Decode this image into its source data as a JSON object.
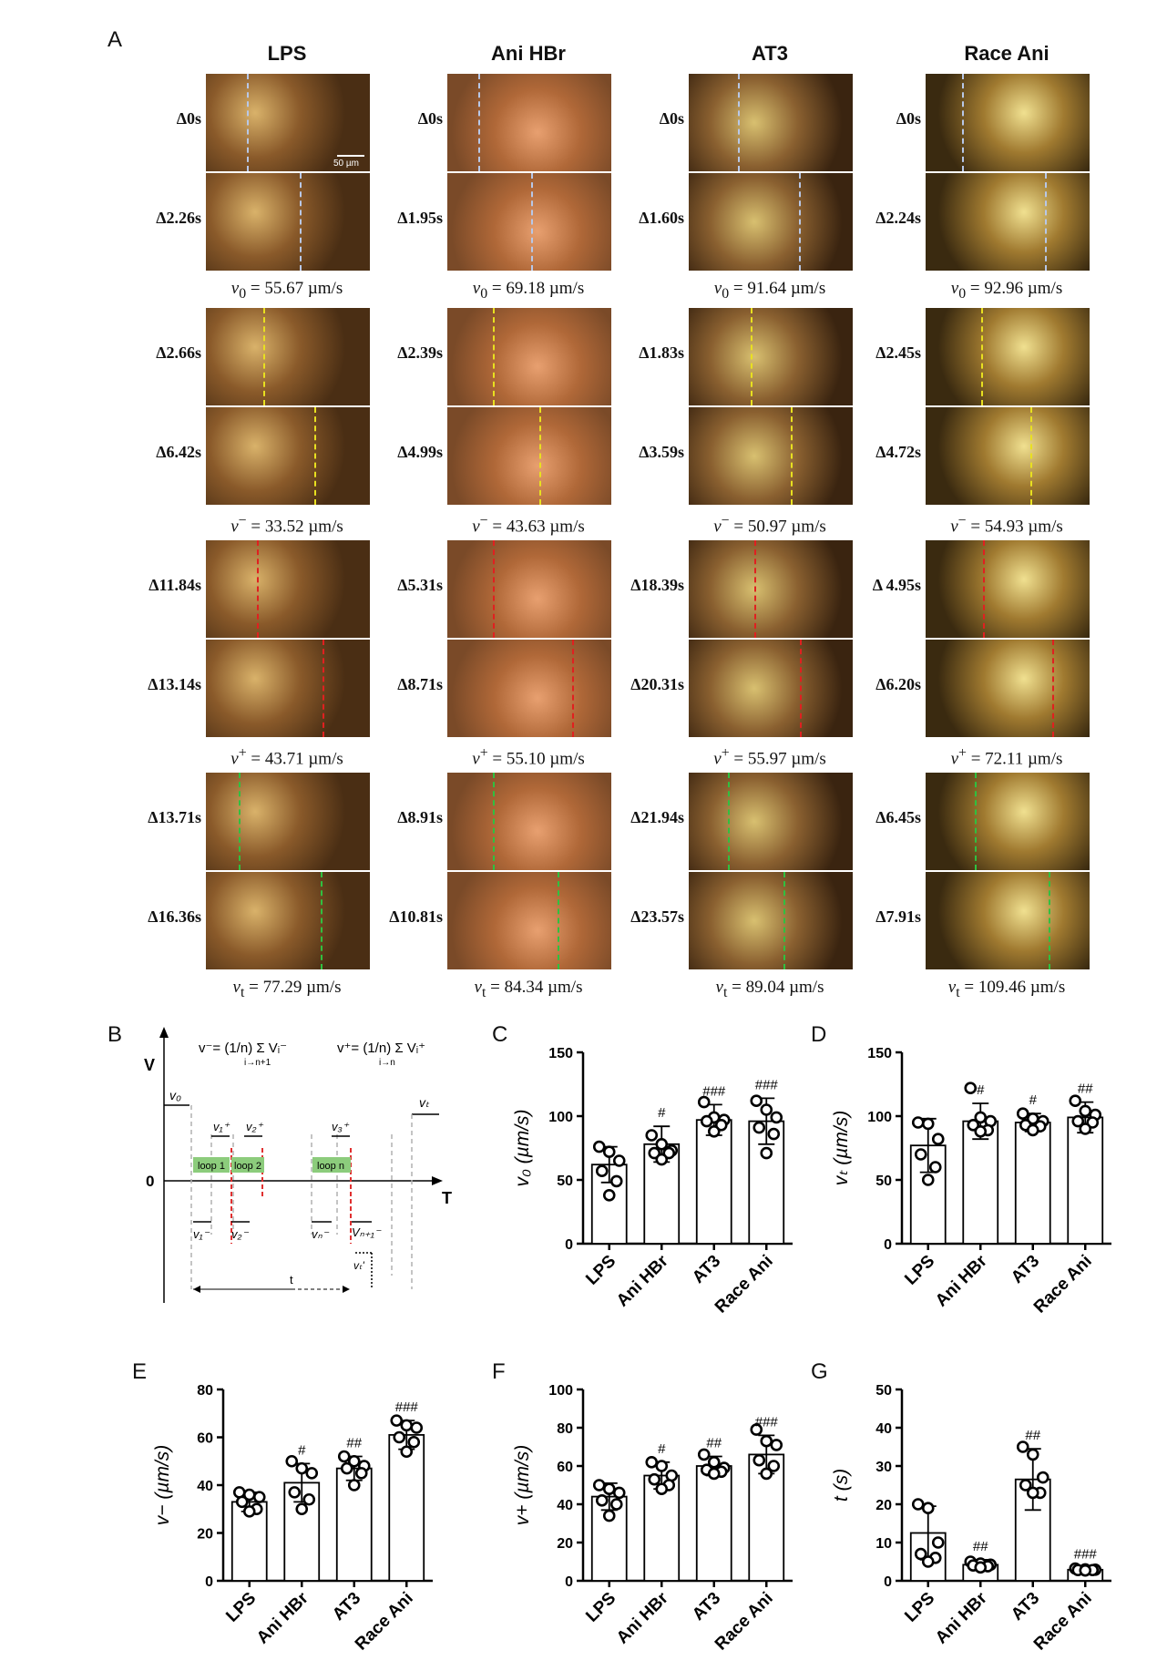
{
  "panelA": {
    "letter": "A",
    "scale_bar_label": "50 µm",
    "columns": [
      {
        "title": "LPS",
        "times": [
          "Δ0s",
          "Δ2.26s",
          "Δ2.66s",
          "Δ6.42s",
          "Δ11.84s",
          "Δ13.14s",
          "Δ13.71s",
          "Δ16.36s"
        ],
        "velocities": [
          {
            "sym": "v",
            "sub": "0",
            "sup": "",
            "value": "= 55.67  µm/s"
          },
          {
            "sym": "v",
            "sub": "",
            "sup": "−",
            "value": "= 33.52  µm/s"
          },
          {
            "sym": "v",
            "sub": "",
            "sup": "+",
            "value": "= 43.71  µm/s"
          },
          {
            "sym": "v",
            "sub": "t",
            "sup": "",
            "value": "= 77.29  µm/s"
          }
        ],
        "line_x": [
          0.25,
          0.57,
          0.35,
          0.66,
          0.31,
          0.71,
          0.2,
          0.7
        ]
      },
      {
        "title": "Ani HBr",
        "times": [
          "Δ0s",
          "Δ1.95s",
          "Δ2.39s",
          "Δ4.99s",
          "Δ5.31s",
          "Δ8.71s",
          "Δ8.91s",
          "Δ10.81s"
        ],
        "velocities": [
          {
            "sym": "v",
            "sub": "0",
            "sup": "",
            "value": "= 69.18  µm/s"
          },
          {
            "sym": "v",
            "sub": "",
            "sup": "−",
            "value": "= 43.63  µm/s"
          },
          {
            "sym": "v",
            "sub": "",
            "sup": "+",
            "value": "= 55.10  µm/s"
          },
          {
            "sym": "v",
            "sub": "t",
            "sup": "",
            "value": "= 84.34  µm/s"
          }
        ],
        "line_x": [
          0.19,
          0.51,
          0.28,
          0.56,
          0.28,
          0.76,
          0.28,
          0.67
        ]
      },
      {
        "title": "AT3",
        "times": [
          "Δ0s",
          "Δ1.60s",
          "Δ1.83s",
          "Δ3.59s",
          "Δ18.39s",
          "Δ20.31s",
          "Δ21.94s",
          "Δ23.57s"
        ],
        "velocities": [
          {
            "sym": "v",
            "sub": "0",
            "sup": "",
            "value": "= 91.64  µm/s"
          },
          {
            "sym": "v",
            "sub": "",
            "sup": "−",
            "value": "= 50.97  µm/s"
          },
          {
            "sym": "v",
            "sub": "",
            "sup": "+",
            "value": "= 55.97  µm/s"
          },
          {
            "sym": "v",
            "sub": "t",
            "sup": "",
            "value": "= 89.04  µm/s"
          }
        ],
        "line_x": [
          0.3,
          0.67,
          0.38,
          0.62,
          0.4,
          0.68,
          0.24,
          0.58
        ]
      },
      {
        "title": "Race Ani",
        "times": [
          "Δ0s",
          "Δ2.24s",
          "Δ2.45s",
          "Δ4.72s",
          "Δ 4.95s",
          "Δ6.20s",
          "Δ6.45s",
          "Δ7.91s"
        ],
        "velocities": [
          {
            "sym": "v",
            "sub": "0",
            "sup": "",
            "value": "= 92.96  µm/s"
          },
          {
            "sym": "v",
            "sub": "",
            "sup": "−",
            "value": "= 54.93  µm/s"
          },
          {
            "sym": "v",
            "sub": "",
            "sup": "+",
            "value": "= 72.11  µm/s"
          },
          {
            "sym": "v",
            "sub": "t",
            "sup": "",
            "value": "= 109.46  µm/s"
          }
        ],
        "line_x": [
          0.22,
          0.73,
          0.34,
          0.64,
          0.35,
          0.77,
          0.3,
          0.75
        ]
      }
    ],
    "pair_colors": [
      "#b8c8e8",
      "#e8e020",
      "#e02020",
      "#30c040"
    ]
  },
  "panelB": {
    "letter": "B",
    "y_axis": "V",
    "x_axis": "T",
    "origin": "0",
    "formula_minus": "v⁻= (1/n) Σ Vᵢ⁻",
    "formula_minus_sub": "i→n+1",
    "formula_plus": "v⁺= (1/n) Σ Vᵢ⁺",
    "formula_plus_sub": "i→n",
    "labels": {
      "v0": "v₀",
      "vt": "vₜ",
      "v1p": "v₁⁺",
      "v2p": "v₂⁺",
      "v3p": "v₃⁺",
      "v1m": "v₁⁻",
      "v2m": "v₂⁻",
      "vnm": "vₙ⁻",
      "vn1m": "Vₙ₊₁⁻",
      "vtp": "vₜ'",
      "t": "t"
    },
    "loops": [
      "loop 1",
      "loop 2",
      "loop n"
    ],
    "loop_color": "#8ccc7c",
    "red_dash": "#e03030"
  },
  "chart_data": [
    {
      "panel": "C",
      "type": "bar",
      "ylabel": "v₀ (µm/s)",
      "ylim": [
        0,
        150
      ],
      "yticks": [
        0,
        50,
        100,
        150
      ],
      "categories": [
        "LPS",
        "Ani HBr",
        "AT3",
        "Race Ani"
      ],
      "values": [
        62,
        78,
        97,
        96
      ],
      "errors": [
        14,
        14,
        12,
        18
      ],
      "points": [
        [
          76,
          72,
          65,
          57,
          49,
          38
        ],
        [
          85,
          78,
          73,
          71,
          71,
          66
        ],
        [
          111,
          99,
          97,
          96,
          93,
          88
        ],
        [
          112,
          105,
          99,
          91,
          86,
          71
        ]
      ],
      "annotations": [
        "",
        "#",
        "###",
        "###"
      ]
    },
    {
      "panel": "D",
      "type": "bar",
      "ylabel": "vₜ (µm/s)",
      "ylim": [
        0,
        150
      ],
      "yticks": [
        0,
        50,
        100,
        150
      ],
      "categories": [
        "LPS",
        "Ani HBr",
        "AT3",
        "Race Ani"
      ],
      "values": [
        77,
        96,
        95,
        99
      ],
      "errors": [
        21,
        14,
        7,
        12
      ],
      "points": [
        [
          95,
          94,
          82,
          70,
          60,
          50
        ],
        [
          122,
          99,
          96,
          93,
          89,
          88
        ],
        [
          102,
          98,
          96,
          93,
          92,
          89
        ],
        [
          112,
          104,
          101,
          96,
          95,
          90
        ]
      ],
      "annotations": [
        "",
        "#",
        "#",
        "##"
      ]
    },
    {
      "panel": "E",
      "type": "bar",
      "ylabel": "v− (µm/s)",
      "ylim": [
        0,
        80
      ],
      "yticks": [
        0,
        20,
        40,
        60,
        80
      ],
      "categories": [
        "LPS",
        "Ani HBr",
        "AT3",
        "Race Ani"
      ],
      "values": [
        33,
        41,
        47,
        61
      ],
      "errors": [
        4,
        8,
        5,
        6
      ],
      "points": [
        [
          37,
          36,
          35,
          33,
          30,
          29
        ],
        [
          50,
          47,
          45,
          37,
          34,
          30
        ],
        [
          52,
          50,
          48,
          47,
          45,
          40
        ],
        [
          67,
          65,
          64,
          60,
          58,
          54
        ]
      ],
      "annotations": [
        "",
        "#",
        "##",
        "###"
      ]
    },
    {
      "panel": "F",
      "type": "bar",
      "ylabel": "v+ (µm/s)",
      "ylim": [
        0,
        100
      ],
      "yticks": [
        0,
        20,
        40,
        60,
        80,
        100
      ],
      "categories": [
        "LPS",
        "Ani HBr",
        "AT3",
        "Race Ani"
      ],
      "values": [
        44,
        55,
        60,
        66
      ],
      "errors": [
        7,
        7,
        5,
        10
      ],
      "points": [
        [
          50,
          48,
          46,
          42,
          40,
          34
        ],
        [
          62,
          60,
          55,
          53,
          50,
          48
        ],
        [
          66,
          62,
          59,
          58,
          57,
          56
        ],
        [
          79,
          73,
          71,
          63,
          60,
          56
        ]
      ],
      "annotations": [
        "",
        "#",
        "##",
        "###"
      ]
    },
    {
      "panel": "G",
      "type": "bar",
      "ylabel": "t (s)",
      "ylim": [
        0,
        50
      ],
      "yticks": [
        0,
        10,
        20,
        30,
        40,
        50
      ],
      "categories": [
        "LPS",
        "Ani HBr",
        "AT3",
        "Race Ani"
      ],
      "values": [
        12.5,
        4.2,
        26.5,
        2.9
      ],
      "errors": [
        7,
        1.3,
        8,
        0.6
      ],
      "points": [
        [
          20,
          19,
          10,
          7,
          6,
          5
        ],
        [
          5,
          4.5,
          4.2,
          4,
          3.8,
          3.5
        ],
        [
          35,
          33,
          27,
          25,
          23,
          23
        ],
        [
          3.2,
          3,
          2.9,
          2.8,
          2.8,
          2.7
        ]
      ],
      "annotations": [
        "",
        "##",
        "##",
        "###"
      ]
    }
  ]
}
